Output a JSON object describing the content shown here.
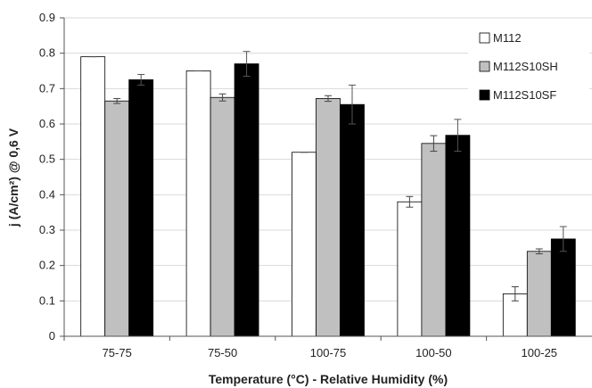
{
  "chart_data": {
    "type": "bar",
    "xlabel": "Temperature (°C) - Relative Humidity (%)",
    "ylabel": "j (A/cm²) @ 0,6 V",
    "ylim": [
      0,
      0.9
    ],
    "y_ticks": [
      "0",
      "0.1",
      "0.2",
      "0.3",
      "0.4",
      "0.5",
      "0.6",
      "0.7",
      "0.8",
      "0.9"
    ],
    "grid": true,
    "legend_position": "top-right",
    "categories": [
      "75-75",
      "75-50",
      "100-75",
      "100-50",
      "100-25"
    ],
    "series": [
      {
        "name": "M112",
        "color": "#ffffff",
        "values": [
          0.79,
          0.75,
          0.52,
          0.38,
          0.12
        ],
        "errors": [
          0.0,
          0.0,
          0.0,
          0.015,
          0.02
        ]
      },
      {
        "name": "M112S10SH",
        "color": "#c0c0c0",
        "values": [
          0.665,
          0.675,
          0.672,
          0.545,
          0.24
        ],
        "errors": [
          0.007,
          0.01,
          0.008,
          0.022,
          0.007
        ]
      },
      {
        "name": "M112S10SF",
        "color": "#000000",
        "values": [
          0.725,
          0.77,
          0.655,
          0.568,
          0.275
        ],
        "errors": [
          0.015,
          0.035,
          0.055,
          0.045,
          0.035
        ]
      }
    ]
  }
}
